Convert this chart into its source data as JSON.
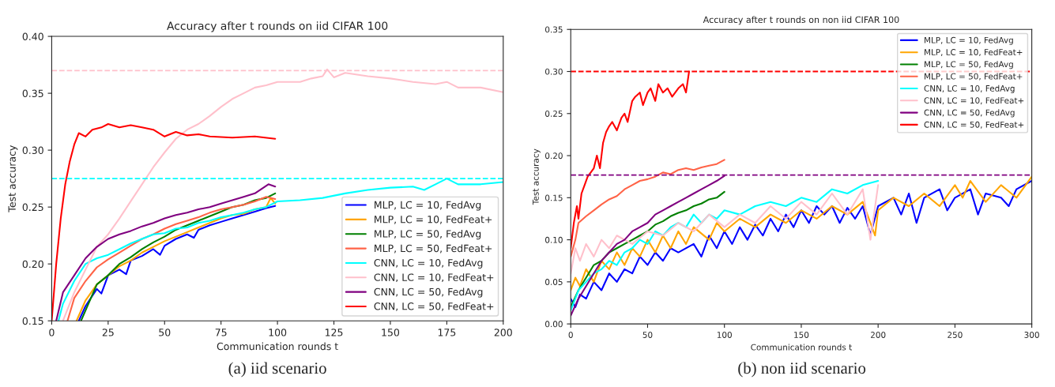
{
  "chart_data": [
    {
      "type": "line",
      "title": "Accuracy after t rounds on iid CIFAR 100",
      "xlabel": "Communication rounds t",
      "ylabel": "Test accuracy",
      "xlim": [
        0,
        200
      ],
      "ylim": [
        0.15,
        0.4
      ],
      "xticks": [
        0,
        25,
        50,
        75,
        100,
        125,
        150,
        175,
        200
      ],
      "yticks": [
        {
          "value": 0.15,
          "label": "0.15"
        },
        {
          "value": 0.2,
          "label": "0.20"
        },
        {
          "value": 0.25,
          "label": "0.25"
        },
        {
          "value": 0.3,
          "label": "0.30"
        },
        {
          "value": 0.35,
          "label": "0.35"
        },
        {
          "value": 0.4,
          "label": "0.40"
        }
      ],
      "legend": "bottom right",
      "line_style": "solid",
      "marker": "none",
      "ref_lines": [
        {
          "axis": "y",
          "value": 0.37,
          "color": "#ffc0cb",
          "line_style": "dashed"
        },
        {
          "axis": "y",
          "value": 0.275,
          "color": "#00ffff",
          "line_style": "dashed"
        }
      ],
      "annotations": [
        "(a) iid scenario"
      ],
      "series": [
        {
          "name": "MLP, LC = 10, FedAvg",
          "color": "#0000ff",
          "x": [
            12,
            15,
            20,
            22,
            25,
            30,
            33,
            35,
            40,
            45,
            48,
            50,
            55,
            60,
            63,
            65,
            70,
            75,
            80,
            85,
            90,
            95,
            99
          ],
          "values": [
            0.15,
            0.163,
            0.178,
            0.174,
            0.19,
            0.195,
            0.191,
            0.203,
            0.207,
            0.213,
            0.208,
            0.216,
            0.222,
            0.226,
            0.223,
            0.23,
            0.234,
            0.237,
            0.24,
            0.243,
            0.246,
            0.249,
            0.251
          ]
        },
        {
          "name": "MLP, LC = 10, FedFeat+",
          "color": "#ffa500",
          "x": [
            11,
            15,
            20,
            25,
            30,
            35,
            40,
            45,
            50,
            55,
            60,
            65,
            70,
            75,
            80,
            85,
            90,
            95,
            97,
            99
          ],
          "values": [
            0.15,
            0.168,
            0.182,
            0.19,
            0.198,
            0.203,
            0.21,
            0.215,
            0.22,
            0.224,
            0.228,
            0.232,
            0.236,
            0.24,
            0.243,
            0.244,
            0.248,
            0.25,
            0.258,
            0.253
          ]
        },
        {
          "name": "MLP, LC = 50, FedAvg",
          "color": "#008000",
          "x": [
            13,
            20,
            25,
            30,
            35,
            40,
            45,
            50,
            55,
            60,
            65,
            70,
            75,
            80,
            85,
            90,
            95,
            99
          ],
          "values": [
            0.15,
            0.182,
            0.19,
            0.2,
            0.206,
            0.213,
            0.219,
            0.224,
            0.23,
            0.234,
            0.238,
            0.242,
            0.246,
            0.25,
            0.252,
            0.256,
            0.258,
            0.262
          ]
        },
        {
          "name": "MLP, LC = 50, FedFeat+",
          "color": "#ff6347",
          "x": [
            7,
            10,
            15,
            20,
            25,
            30,
            35,
            40,
            45,
            50,
            55,
            60,
            65,
            70,
            75,
            80,
            85,
            90,
            95,
            99
          ],
          "values": [
            0.15,
            0.17,
            0.185,
            0.197,
            0.204,
            0.21,
            0.216,
            0.222,
            0.226,
            0.231,
            0.235,
            0.238,
            0.241,
            0.245,
            0.248,
            0.25,
            0.252,
            0.255,
            0.259,
            0.257
          ]
        },
        {
          "name": "CNN, LC = 10, FedAvg",
          "color": "#00ffff",
          "x": [
            3,
            5,
            10,
            15,
            20,
            25,
            30,
            35,
            40,
            45,
            50,
            55,
            60,
            65,
            70,
            75,
            80,
            85,
            90,
            95,
            100,
            110,
            120,
            130,
            140,
            150,
            160,
            165,
            170,
            175,
            180,
            190,
            200
          ],
          "values": [
            0.15,
            0.165,
            0.185,
            0.2,
            0.205,
            0.208,
            0.213,
            0.218,
            0.222,
            0.226,
            0.227,
            0.231,
            0.232,
            0.236,
            0.238,
            0.241,
            0.243,
            0.245,
            0.248,
            0.25,
            0.255,
            0.256,
            0.258,
            0.262,
            0.265,
            0.267,
            0.268,
            0.265,
            0.27,
            0.275,
            0.27,
            0.27,
            0.272
          ]
        },
        {
          "name": "CNN, LC = 10, FedFeat+",
          "color": "#ffc0cb",
          "x": [
            5,
            10,
            15,
            20,
            25,
            30,
            35,
            40,
            45,
            50,
            55,
            60,
            65,
            70,
            75,
            80,
            85,
            90,
            95,
            100,
            110,
            115,
            120,
            122,
            125,
            130,
            140,
            150,
            160,
            170,
            175,
            180,
            190,
            200
          ],
          "values": [
            0.15,
            0.175,
            0.195,
            0.215,
            0.226,
            0.24,
            0.255,
            0.27,
            0.285,
            0.298,
            0.31,
            0.318,
            0.323,
            0.33,
            0.338,
            0.345,
            0.35,
            0.355,
            0.357,
            0.36,
            0.36,
            0.363,
            0.365,
            0.371,
            0.364,
            0.368,
            0.365,
            0.363,
            0.36,
            0.358,
            0.36,
            0.355,
            0.355,
            0.351
          ]
        },
        {
          "name": "CNN, LC = 50, FedAvg",
          "color": "#800080",
          "x": [
            2,
            5,
            10,
            15,
            20,
            25,
            30,
            35,
            40,
            45,
            50,
            55,
            60,
            65,
            70,
            75,
            80,
            85,
            90,
            96,
            99
          ],
          "values": [
            0.15,
            0.175,
            0.19,
            0.205,
            0.215,
            0.222,
            0.226,
            0.229,
            0.233,
            0.236,
            0.24,
            0.243,
            0.245,
            0.248,
            0.25,
            0.253,
            0.256,
            0.259,
            0.262,
            0.27,
            0.268
          ]
        },
        {
          "name": "CNN, LC = 50, FedFeat+",
          "color": "#ff0000",
          "x": [
            0,
            2,
            4,
            6,
            8,
            10,
            12,
            15,
            18,
            22,
            25,
            30,
            35,
            40,
            45,
            50,
            55,
            60,
            65,
            70,
            80,
            90,
            99
          ],
          "values": [
            0.15,
            0.2,
            0.24,
            0.27,
            0.29,
            0.305,
            0.315,
            0.312,
            0.318,
            0.32,
            0.323,
            0.32,
            0.322,
            0.32,
            0.318,
            0.312,
            0.316,
            0.313,
            0.314,
            0.312,
            0.311,
            0.312,
            0.31
          ]
        }
      ]
    },
    {
      "type": "line",
      "title": "Accuracy after t rounds on non iid CIFAR 100",
      "xlabel": "Communication rounds t",
      "ylabel": "Test accuracy",
      "xlim": [
        0,
        300
      ],
      "ylim": [
        0,
        0.35
      ],
      "xticks": [
        0,
        50,
        100,
        150,
        200,
        250,
        300
      ],
      "yticks": [
        {
          "value": 0,
          "label": "0.00"
        },
        {
          "value": 0.05,
          "label": "0.05"
        },
        {
          "value": 0.1,
          "label": "0.10"
        },
        {
          "value": 0.15,
          "label": "0.15"
        },
        {
          "value": 0.2,
          "label": "0.20"
        },
        {
          "value": 0.25,
          "label": "0.25"
        },
        {
          "value": 0.3,
          "label": "0.30"
        },
        {
          "value": 0.35,
          "label": "0.35"
        }
      ],
      "legend": "top right",
      "line_style": "solid",
      "marker": "none",
      "ref_lines": [
        {
          "axis": "y",
          "value": 0.3,
          "color": "#ff0000",
          "line_style": "dashed"
        },
        {
          "axis": "y",
          "value": 0.177,
          "color": "#800080",
          "line_style": "dashed"
        }
      ],
      "annotations": [
        "(b) non iid scenario"
      ],
      "series": [
        {
          "name": "MLP, LC = 10, FedAvg",
          "color": "#0000ff",
          "x": [
            0,
            3,
            6,
            10,
            15,
            20,
            25,
            30,
            35,
            40,
            45,
            50,
            55,
            60,
            65,
            70,
            80,
            85,
            90,
            95,
            100,
            105,
            110,
            115,
            120,
            125,
            130,
            135,
            140,
            145,
            150,
            155,
            160,
            165,
            170,
            175,
            180,
            185,
            190,
            195,
            200,
            210,
            215,
            220,
            225,
            230,
            240,
            245,
            250,
            260,
            265,
            270,
            280,
            285,
            290,
            300
          ],
          "values": [
            0.03,
            0.02,
            0.035,
            0.03,
            0.05,
            0.04,
            0.06,
            0.05,
            0.065,
            0.06,
            0.08,
            0.07,
            0.085,
            0.075,
            0.09,
            0.085,
            0.095,
            0.08,
            0.105,
            0.09,
            0.11,
            0.095,
            0.115,
            0.1,
            0.118,
            0.105,
            0.125,
            0.11,
            0.13,
            0.115,
            0.135,
            0.12,
            0.14,
            0.13,
            0.14,
            0.12,
            0.138,
            0.125,
            0.14,
            0.106,
            0.14,
            0.15,
            0.13,
            0.155,
            0.12,
            0.15,
            0.16,
            0.135,
            0.15,
            0.16,
            0.13,
            0.155,
            0.15,
            0.14,
            0.16,
            0.17
          ]
        },
        {
          "name": "MLP, LC = 10, FedFeat+",
          "color": "#ffa500",
          "x": [
            0,
            3,
            6,
            10,
            15,
            20,
            25,
            30,
            35,
            40,
            45,
            50,
            55,
            60,
            65,
            70,
            75,
            80,
            90,
            95,
            100,
            110,
            120,
            130,
            140,
            150,
            160,
            170,
            180,
            190,
            198,
            200,
            210,
            220,
            230,
            240,
            250,
            255,
            260,
            270,
            280,
            290,
            300
          ],
          "values": [
            0.04,
            0.055,
            0.045,
            0.065,
            0.05,
            0.075,
            0.065,
            0.085,
            0.07,
            0.09,
            0.08,
            0.1,
            0.085,
            0.105,
            0.09,
            0.11,
            0.095,
            0.115,
            0.1,
            0.12,
            0.11,
            0.125,
            0.115,
            0.13,
            0.12,
            0.135,
            0.125,
            0.14,
            0.13,
            0.145,
            0.105,
            0.135,
            0.15,
            0.14,
            0.155,
            0.14,
            0.165,
            0.15,
            0.17,
            0.145,
            0.165,
            0.15,
            0.175
          ]
        },
        {
          "name": "MLP, LC = 50, FedAvg",
          "color": "#008000",
          "x": [
            0,
            5,
            10,
            15,
            20,
            25,
            30,
            35,
            40,
            45,
            50,
            55,
            60,
            65,
            70,
            75,
            80,
            85,
            90,
            95,
            100
          ],
          "values": [
            0.02,
            0.04,
            0.055,
            0.07,
            0.075,
            0.085,
            0.09,
            0.095,
            0.1,
            0.105,
            0.11,
            0.118,
            0.122,
            0.128,
            0.132,
            0.135,
            0.14,
            0.143,
            0.148,
            0.15,
            0.157
          ]
        },
        {
          "name": "MLP, LC = 50, FedFeat+",
          "color": "#ff6347",
          "x": [
            0,
            3,
            5,
            10,
            15,
            20,
            25,
            30,
            35,
            40,
            45,
            50,
            55,
            60,
            65,
            70,
            75,
            80,
            85,
            90,
            95,
            100
          ],
          "values": [
            0.08,
            0.1,
            0.12,
            0.128,
            0.135,
            0.142,
            0.148,
            0.152,
            0.16,
            0.165,
            0.17,
            0.172,
            0.175,
            0.18,
            0.178,
            0.183,
            0.185,
            0.183,
            0.186,
            0.188,
            0.19,
            0.195
          ]
        },
        {
          "name": "CNN, LC = 10, FedAvg",
          "color": "#00ffff",
          "x": [
            0,
            5,
            10,
            15,
            20,
            25,
            30,
            35,
            40,
            45,
            50,
            55,
            60,
            65,
            70,
            75,
            80,
            85,
            90,
            95,
            100,
            110,
            120,
            130,
            140,
            150,
            160,
            170,
            180,
            190,
            200
          ],
          "values": [
            0.016,
            0.04,
            0.05,
            0.06,
            0.065,
            0.075,
            0.07,
            0.085,
            0.09,
            0.1,
            0.095,
            0.11,
            0.105,
            0.115,
            0.12,
            0.115,
            0.13,
            0.12,
            0.13,
            0.125,
            0.135,
            0.13,
            0.14,
            0.145,
            0.14,
            0.15,
            0.145,
            0.16,
            0.155,
            0.165,
            0.17
          ]
        },
        {
          "name": "CNN, LC = 10, FedFeat+",
          "color": "#ffc0cb",
          "x": [
            0,
            3,
            6,
            10,
            15,
            20,
            25,
            30,
            40,
            50,
            60,
            70,
            80,
            90,
            100,
            110,
            120,
            130,
            140,
            150,
            160,
            170,
            180,
            190,
            195,
            200
          ],
          "values": [
            0.06,
            0.09,
            0.075,
            0.095,
            0.08,
            0.1,
            0.09,
            0.105,
            0.095,
            0.11,
            0.105,
            0.12,
            0.11,
            0.13,
            0.115,
            0.13,
            0.12,
            0.14,
            0.125,
            0.145,
            0.13,
            0.155,
            0.13,
            0.16,
            0.1,
            0.165
          ]
        },
        {
          "name": "CNN, LC = 50, FedAvg",
          "color": "#800080",
          "x": [
            0,
            5,
            10,
            15,
            20,
            25,
            30,
            35,
            40,
            45,
            50,
            55,
            60,
            65,
            70,
            75,
            80,
            85,
            90,
            95,
            100
          ],
          "values": [
            0.01,
            0.03,
            0.045,
            0.06,
            0.075,
            0.085,
            0.095,
            0.1,
            0.11,
            0.115,
            0.12,
            0.13,
            0.135,
            0.14,
            0.145,
            0.15,
            0.155,
            0.16,
            0.165,
            0.17,
            0.176
          ]
        },
        {
          "name": "CNN, LC = 50, FedFeat+",
          "color": "#ff0000",
          "x": [
            0,
            2,
            4,
            5,
            7,
            9,
            11,
            13,
            15,
            17,
            19,
            21,
            23,
            25,
            27,
            30,
            33,
            35,
            37,
            40,
            42,
            45,
            47,
            50,
            52,
            55,
            57,
            60,
            63,
            66,
            70,
            73,
            75,
            77
          ],
          "values": [
            0.09,
            0.12,
            0.14,
            0.125,
            0.155,
            0.165,
            0.175,
            0.18,
            0.185,
            0.2,
            0.185,
            0.215,
            0.228,
            0.235,
            0.24,
            0.23,
            0.245,
            0.25,
            0.24,
            0.265,
            0.27,
            0.275,
            0.26,
            0.275,
            0.28,
            0.265,
            0.285,
            0.275,
            0.28,
            0.27,
            0.28,
            0.285,
            0.275,
            0.3
          ]
        }
      ]
    }
  ]
}
